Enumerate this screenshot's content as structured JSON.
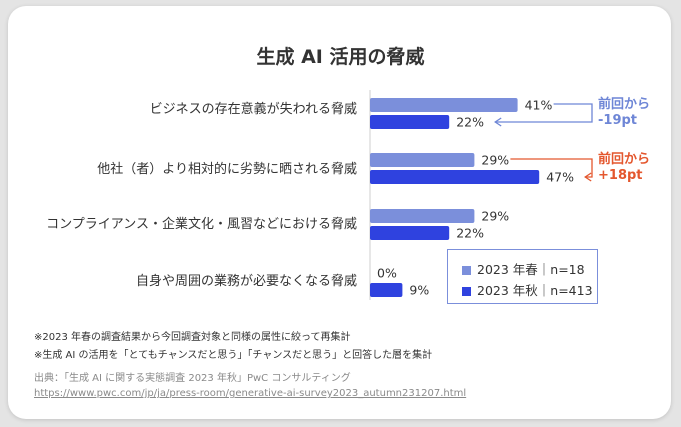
{
  "chart_data": {
    "type": "bar",
    "orientation": "horizontal",
    "title": "生成 AI 活用の脅威",
    "categories": [
      "ビジネスの存在意義が失われる脅威",
      "他社（者）より相対的に劣勢に晒される脅威",
      "コンプライアンス・企業文化・風習などにおける脅威",
      "自身や周囲の業務が必要なくなる脅威"
    ],
    "series": [
      {
        "name": "2023 年春｜n=18",
        "values": [
          41,
          29,
          29,
          0
        ],
        "labels": [
          "41%",
          "29%",
          "29%",
          "0%"
        ],
        "color": "#7b8fdb"
      },
      {
        "name": "2023 年秋｜n=413",
        "values": [
          22,
          47,
          22,
          9
        ],
        "labels": [
          "22%",
          "47%",
          "22%",
          "9%"
        ],
        "color": "#2f42df"
      }
    ],
    "xlim": [
      0,
      60
    ],
    "grid": false,
    "legend_position": "bottom-right",
    "annotations": [
      {
        "category_index": 0,
        "lines": [
          "前回から",
          "-19pt"
        ],
        "color": "#6e86d6"
      },
      {
        "category_index": 1,
        "lines": [
          "前回から",
          "+18pt"
        ],
        "color": "#e4572e"
      }
    ]
  },
  "notes": [
    "※2023 年春の調査結果から今回調査対象と同様の属性に絞って再集計",
    "※生成 AI の活用を「とてもチャンスだと思う」「チャンスだと思う」と回答した層を集計"
  ],
  "source": {
    "text": "出典：「生成 AI に関する実態調査 2023 年秋」PwC コンサルティング",
    "url": "https://www.pwc.com/jp/ja/press-room/generative-ai-survey2023_autumn231207.html"
  },
  "colors": {
    "background": "#e4e4e4",
    "card": "#ffffff",
    "spring": "#7b8fdb",
    "autumn": "#2f42df",
    "increase": "#e4572e"
  }
}
